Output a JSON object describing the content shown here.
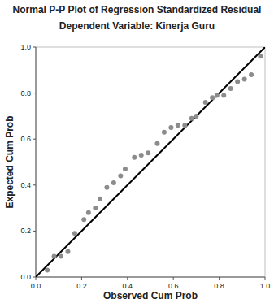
{
  "chart_data": {
    "type": "scatter",
    "title": "Normal P-P Plot of Regression Standardized Residual",
    "subtitle": "Dependent Variable: Kinerja Guru",
    "x_label": "Observed Cum Prob",
    "y_label": "Expected Cum Prob",
    "x": [
      0.05,
      0.08,
      0.11,
      0.14,
      0.17,
      0.21,
      0.23,
      0.26,
      0.28,
      0.31,
      0.34,
      0.37,
      0.39,
      0.43,
      0.46,
      0.49,
      0.53,
      0.56,
      0.59,
      0.62,
      0.65,
      0.68,
      0.7,
      0.74,
      0.77,
      0.79,
      0.82,
      0.85,
      0.88,
      0.91,
      0.94,
      0.98
    ],
    "values": [
      0.03,
      0.09,
      0.09,
      0.11,
      0.19,
      0.25,
      0.28,
      0.3,
      0.34,
      0.39,
      0.41,
      0.44,
      0.47,
      0.52,
      0.53,
      0.54,
      0.58,
      0.63,
      0.65,
      0.66,
      0.66,
      0.69,
      0.7,
      0.76,
      0.78,
      0.79,
      0.79,
      0.82,
      0.85,
      0.86,
      0.88,
      0.96
    ],
    "color": "#8c8c8c",
    "marker": "circle",
    "grid": false,
    "xlim": [
      0,
      1
    ],
    "ylim": [
      0,
      1
    ],
    "xticks": [
      {
        "value": 0,
        "label": "0.0"
      },
      {
        "value": 0.2,
        "label": "0.2"
      },
      {
        "value": 0.4,
        "label": "0.4"
      },
      {
        "value": 0.6,
        "label": "0.6"
      },
      {
        "value": 0.8,
        "label": "0.8"
      },
      {
        "value": 1,
        "label": "1.0"
      }
    ],
    "yticks": [
      {
        "value": 0,
        "label": "0.0"
      },
      {
        "value": 0.2,
        "label": "0.2"
      },
      {
        "value": 0.4,
        "label": "0.4"
      },
      {
        "value": 0.6,
        "label": "0.6"
      },
      {
        "value": 0.8,
        "label": "0.8"
      },
      {
        "value": 1,
        "label": "1.0"
      }
    ]
  }
}
